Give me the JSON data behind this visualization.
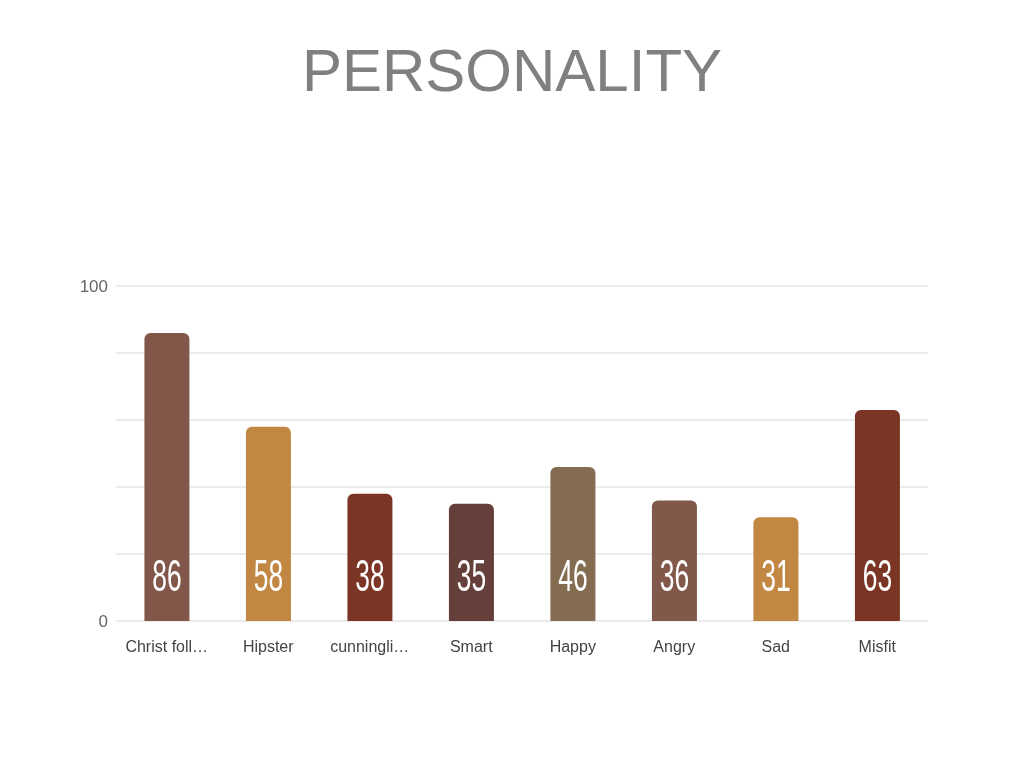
{
  "chart_data": {
    "type": "bar",
    "title": "PERSONALITY",
    "categories": [
      "Christ foll…",
      "Hipster",
      "cunningli…",
      "Smart",
      "Happy",
      "Angry",
      "Sad",
      "Misfit"
    ],
    "values": [
      86,
      58,
      38,
      35,
      46,
      36,
      31,
      63
    ],
    "colors": [
      "#82574a",
      "#c28843",
      "#7b3525",
      "#65403a",
      "#836c4f",
      "#82584b",
      "#c28843",
      "#7b3525"
    ],
    "ylim": [
      0,
      100
    ],
    "yticks": [
      0,
      {
        "value": 20,
        "label": null
      },
      {
        "value": 40,
        "label": null
      },
      {
        "value": 60,
        "label": null
      },
      {
        "value": 80,
        "label": null
      },
      100
    ],
    "grid": "y",
    "data_labels": true
  }
}
